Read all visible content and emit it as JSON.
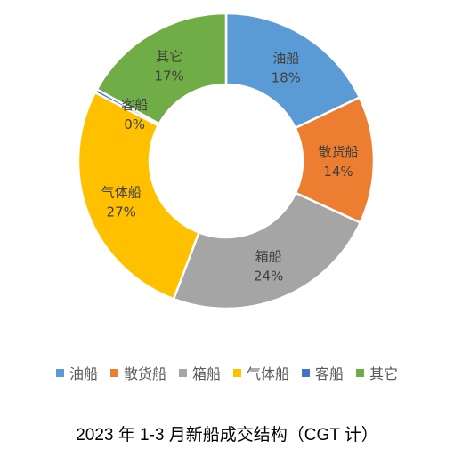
{
  "chart_data": {
    "type": "pie",
    "title": "2023 年 1-3 月新船成交结构（CGT 计）",
    "categories": [
      "油船",
      "散货船",
      "箱船",
      "气体船",
      "客船",
      "其它"
    ],
    "values": [
      18,
      14,
      24,
      27,
      0.4,
      17
    ],
    "value_labels": [
      "18%",
      "14%",
      "24%",
      "27%",
      "0%",
      "17%"
    ],
    "colors": [
      "#5B9BD5",
      "#ED7D31",
      "#A5A5A5",
      "#FFC000",
      "#4472C4",
      "#70AD47"
    ],
    "legend_position": "bottom"
  }
}
